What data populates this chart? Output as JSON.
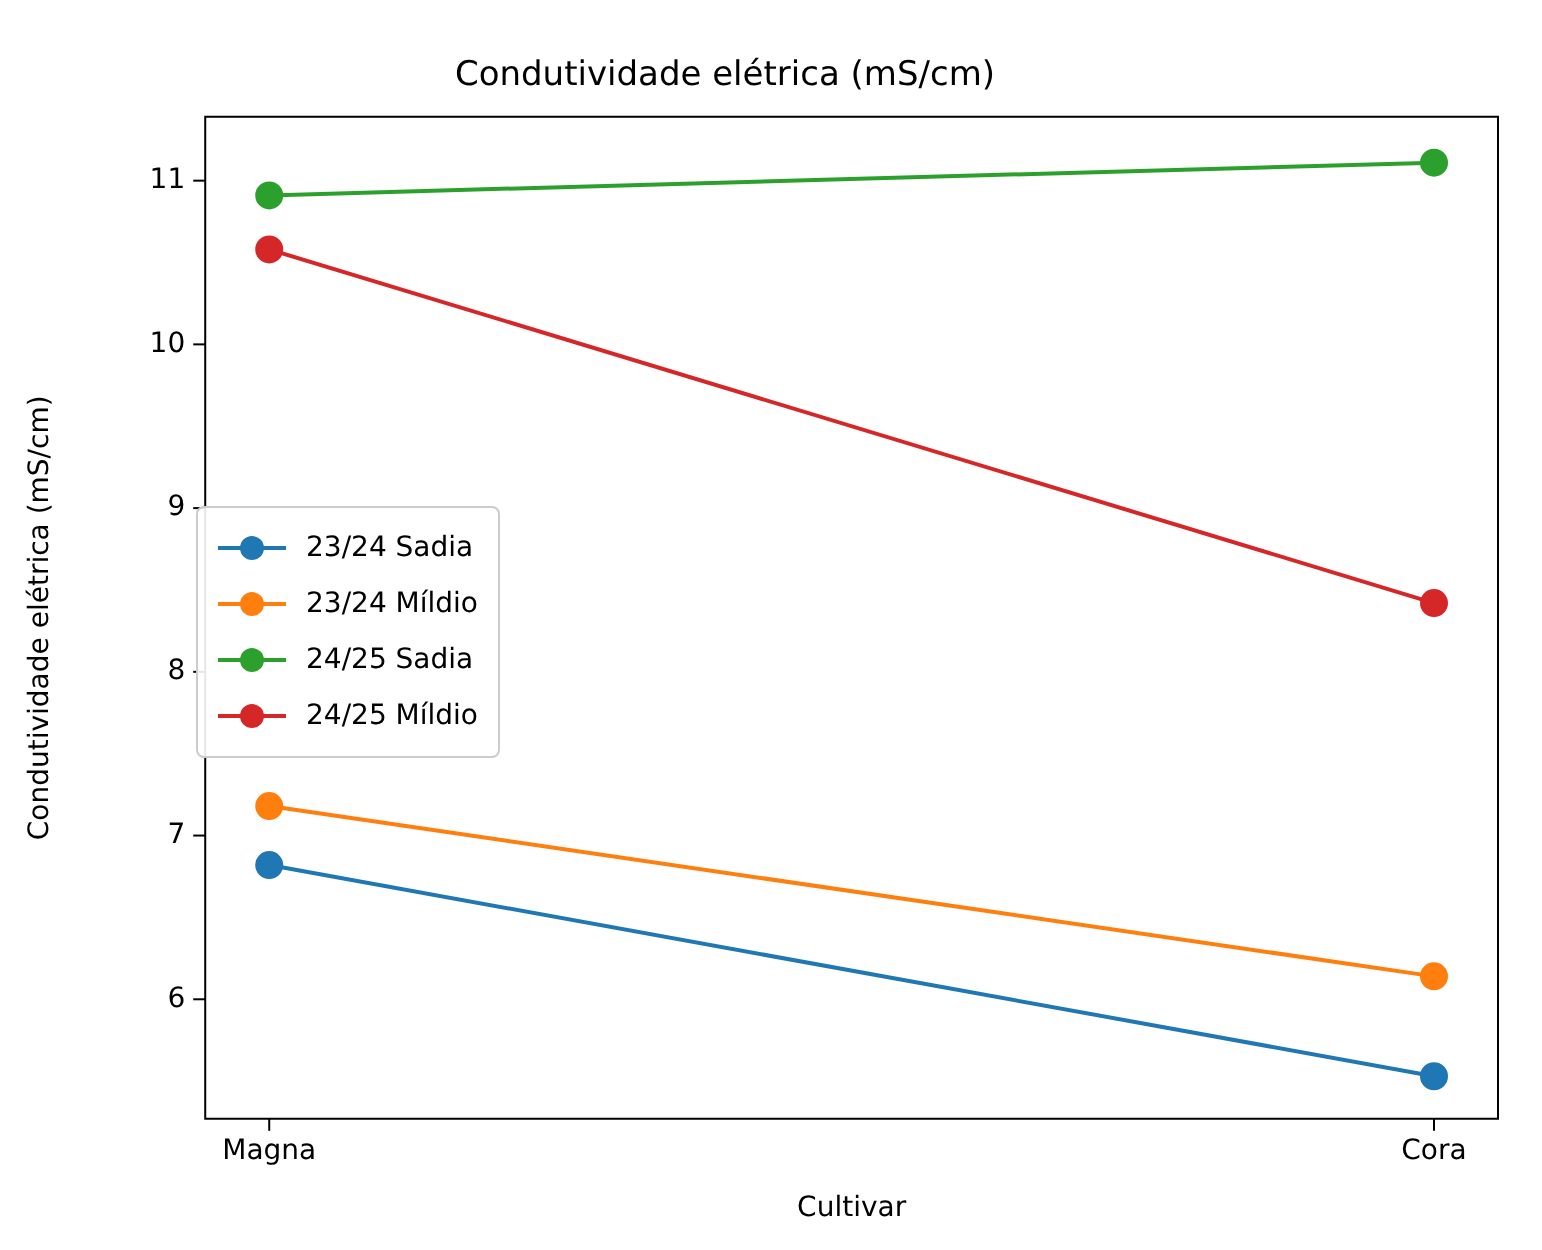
{
  "chart_data": {
    "type": "line",
    "title": "Condutividade elétrica (mS/cm)",
    "xlabel": "Cultivar",
    "ylabel": "Condutividade elétrica (mS/cm)",
    "categories": [
      "Magna",
      "Cora"
    ],
    "series": [
      {
        "name": "23/24 Sadia",
        "color": "#1f77b4",
        "values": [
          6.82,
          5.53
        ]
      },
      {
        "name": "23/24 Míldio",
        "color": "#ff7f0e",
        "values": [
          7.18,
          6.14
        ]
      },
      {
        "name": "24/25 Sadia",
        "color": "#2ca02c",
        "values": [
          10.91,
          11.11
        ]
      },
      {
        "name": "24/25 Míldio",
        "color": "#d62728",
        "values": [
          10.58,
          8.42
        ]
      }
    ],
    "ylim": [
      5.27,
      11.39
    ],
    "yticks": [
      6,
      7,
      8,
      9,
      10,
      11
    ],
    "grid": false,
    "legend": "center left",
    "marker": "circle",
    "line_style": "solid"
  }
}
